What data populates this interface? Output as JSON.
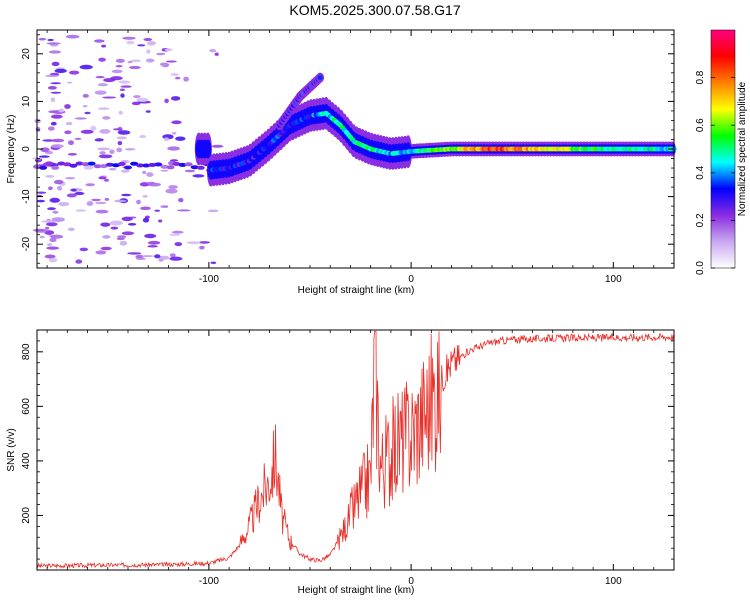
{
  "title": "KOM5.2025.300.07.58.G17",
  "chart_data": [
    {
      "type": "heatmap",
      "xlabel": "Height of straight line (km)",
      "ylabel": "Frequency (Hz)",
      "xlim": [
        -185,
        130
      ],
      "ylim": [
        -25,
        25
      ],
      "xticks": [
        -100,
        0,
        100
      ],
      "xtick_labels": [
        "-100",
        "0",
        "100"
      ],
      "yticks": [
        -20,
        -10,
        0,
        10,
        20
      ],
      "ytick_labels": [
        "-20",
        "-10",
        "0",
        "10",
        "20"
      ],
      "colorbar": {
        "label": "Normalized spectral amplitude",
        "range": [
          0,
          1
        ],
        "ticks": [
          0.0,
          0.2,
          0.4,
          0.6,
          0.8
        ],
        "tick_labels": [
          "0.0",
          "0.2",
          "0.4",
          "0.6",
          "0.8"
        ],
        "colors": [
          "#ffffff",
          "#c8a8f0",
          "#8a2be2",
          "#0000ff",
          "#00ffff",
          "#00ff00",
          "#ffff00",
          "#ff8000",
          "#ff0000",
          "#ff0080"
        ]
      },
      "ridge": [
        {
          "x": -100,
          "f": -4.5,
          "a": 0.35
        },
        {
          "x": -90,
          "f": -4.0,
          "a": 0.3
        },
        {
          "x": -80,
          "f": -2.5,
          "a": 0.3
        },
        {
          "x": -70,
          "f": 1.0,
          "a": 0.35
        },
        {
          "x": -60,
          "f": 5.0,
          "a": 0.3
        },
        {
          "x": -50,
          "f": 7.0,
          "a": 0.35
        },
        {
          "x": -42,
          "f": 7.5,
          "a": 0.45
        },
        {
          "x": -35,
          "f": 5.0,
          "a": 0.5
        },
        {
          "x": -28,
          "f": 1.5,
          "a": 0.45
        },
        {
          "x": -20,
          "f": 0.0,
          "a": 0.5
        },
        {
          "x": -10,
          "f": -1.0,
          "a": 0.4
        },
        {
          "x": 0,
          "f": -0.5,
          "a": 0.45
        },
        {
          "x": 20,
          "f": 0.0,
          "a": 0.6
        },
        {
          "x": 40,
          "f": 0.0,
          "a": 0.85
        },
        {
          "x": 70,
          "f": 0.0,
          "a": 0.65
        },
        {
          "x": 100,
          "f": 0.0,
          "a": 0.5
        },
        {
          "x": 130,
          "f": 0.0,
          "a": 0.45
        }
      ],
      "upper_branch": [
        {
          "x": -65,
          "f": 5.0
        },
        {
          "x": -55,
          "f": 11.0
        },
        {
          "x": -45,
          "f": 15.0
        }
      ]
    },
    {
      "type": "line",
      "xlabel": "Height of straight line (km)",
      "ylabel": "SNR (v/v)",
      "xlim": [
        -185,
        130
      ],
      "ylim": [
        0,
        880
      ],
      "xticks": [
        -100,
        0,
        100
      ],
      "xtick_labels": [
        "-100",
        "0",
        "100"
      ],
      "yticks": [
        200,
        400,
        600,
        800
      ],
      "ytick_labels": [
        "200",
        "400",
        "600",
        "800"
      ],
      "series": [
        {
          "name": "SNR",
          "color": "#e8302a",
          "x": [
            -185,
            -150,
            -120,
            -100,
            -90,
            -85,
            -80,
            -75,
            -70,
            -67,
            -64,
            -60,
            -55,
            -50,
            -45,
            -40,
            -35,
            -30,
            -25,
            -20,
            -18,
            -15,
            -10,
            -5,
            0,
            5,
            10,
            15,
            20,
            30,
            40,
            50,
            70,
            100,
            130
          ],
          "y": [
            15,
            18,
            20,
            25,
            45,
            90,
            160,
            260,
            330,
            420,
            200,
            110,
            60,
            40,
            35,
            55,
            120,
            200,
            280,
            350,
            780,
            380,
            430,
            480,
            500,
            560,
            620,
            700,
            760,
            810,
            835,
            845,
            850,
            852,
            855
          ]
        }
      ]
    }
  ]
}
